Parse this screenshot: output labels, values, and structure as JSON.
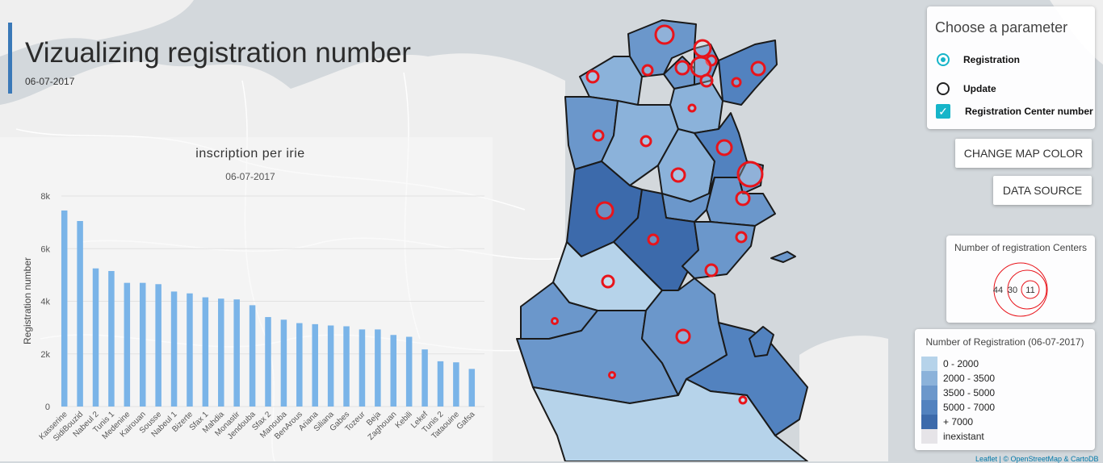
{
  "header": {
    "title": "Vizualizing registration number",
    "date": "06-07-2017"
  },
  "chart_data": {
    "type": "bar",
    "title": "inscription per irie",
    "subtitle": "06-07-2017",
    "ylabel": "Registration number",
    "xlabel": "",
    "ylim": [
      0,
      8000
    ],
    "yticks": [
      0,
      2000,
      4000,
      6000,
      8000
    ],
    "ytick_labels": [
      "0",
      "2k",
      "4k",
      "6k",
      "8k"
    ],
    "grid": true,
    "categories": [
      "Kasserine",
      "SidiBouzid",
      "Nabeul 2",
      "Tunis 1",
      "Medenine",
      "Kairouan",
      "Sousse",
      "Nabeul 1",
      "Bizerte",
      "Sfax 1",
      "Mahdia",
      "Monastir",
      "Jendouba",
      "Sfax 2",
      "Manouba",
      "BenArous",
      "Ariana",
      "Siliana",
      "Gabes",
      "Tozeur",
      "Beja",
      "Zaghouan",
      "Kebili",
      "Lekef",
      "Tunis 2",
      "Tataouine",
      "Gafsa"
    ],
    "values": [
      7450,
      7050,
      5250,
      5150,
      4700,
      4700,
      4650,
      4370,
      4300,
      4150,
      4100,
      4070,
      3850,
      3400,
      3300,
      3170,
      3130,
      3080,
      3050,
      2930,
      2930,
      2720,
      2650,
      2170,
      1720,
      1680,
      1430
    ],
    "bar_color": "#7ab4e8"
  },
  "controls": {
    "title": "Choose a parameter",
    "options": [
      {
        "label": "Registration",
        "selected": true
      },
      {
        "label": "Update",
        "selected": false
      }
    ],
    "checkbox": {
      "label": "Registration Center number",
      "checked": true
    }
  },
  "buttons": {
    "change_color": "CHANGE MAP COLOR",
    "data_source": "DATA SOURCE"
  },
  "centers_legend": {
    "title": "Number of registration Centers",
    "labels": [
      "44",
      "30",
      "11"
    ],
    "circle_color": "#e8141b"
  },
  "registration_legend": {
    "title": "Number of Registration (06-07-2017)",
    "items": [
      {
        "label": "0 - 2000",
        "color": "#b6d3ea"
      },
      {
        "label": "2000 - 3500",
        "color": "#8bb2da"
      },
      {
        "label": "3500 - 5000",
        "color": "#6b97cb"
      },
      {
        "label": "5000 - 7000",
        "color": "#5282bf"
      },
      {
        "label": "+ 7000",
        "color": "#3c6aab"
      },
      {
        "label": "inexistant",
        "color": "#e6e4e8"
      }
    ]
  },
  "attribution": "Leaflet | © OpenStreetMap & CartoDB"
}
